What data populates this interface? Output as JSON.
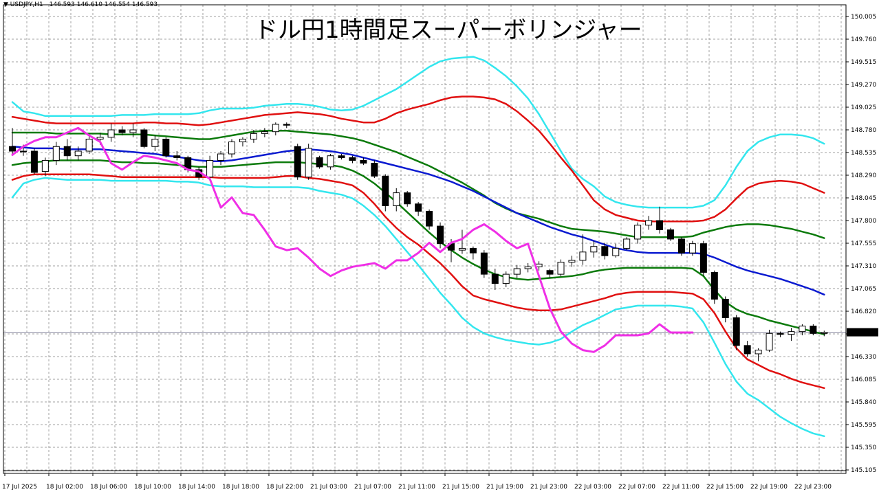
{
  "symbol_header": {
    "arrow": "▼",
    "symbol": "USDJPY,H1",
    "ohlc": "146.593 146.610 146.554 146.593"
  },
  "title": "ドル円1時間足スーパーボリンジャー",
  "current_price_label": "146.593",
  "chart_data": {
    "type": "line",
    "title": "ドル円1時間足スーパーボリンジャー",
    "symbol": "USDJPY,H1",
    "ylim": [
      145.105,
      150.005
    ],
    "grid": true,
    "y_ticks": [
      "150.005",
      "149.760",
      "149.515",
      "149.270",
      "149.025",
      "148.780",
      "148.535",
      "148.290",
      "148.045",
      "147.800",
      "147.555",
      "147.310",
      "147.065",
      "146.820",
      "146.575",
      "146.330",
      "146.085",
      "145.840",
      "145.595",
      "145.350",
      "145.105"
    ],
    "x_ticks": [
      "17 Jul 2025",
      "18 Jul 02:00",
      "18 Jul 06:00",
      "18 Jul 10:00",
      "18 Jul 14:00",
      "18 Jul 18:00",
      "18 Jul 22:00",
      "21 Jul 03:00",
      "21 Jul 07:00",
      "21 Jul 11:00",
      "21 Jul 15:00",
      "21 Jul 19:00",
      "21 Jul 23:00",
      "22 Jul 03:00",
      "22 Jul 07:00",
      "22 Jul 11:00",
      "22 Jul 15:00",
      "22 Jul 19:00",
      "22 Jul 23:00"
    ],
    "bar_count": 75,
    "last_price": 146.593,
    "colors": {
      "bull": "#ffffff",
      "bear": "#000000",
      "sma": "#0a1ad0",
      "band1": "#0b7a0b",
      "band2": "#e01010",
      "band3": "#33e6ee",
      "lagging": "#ef2fe6",
      "grid": "#a0a0a0"
    },
    "candles": [
      {
        "o": 148.6,
        "h": 148.8,
        "l": 148.5,
        "c": 148.55
      },
      {
        "o": 148.55,
        "h": 148.62,
        "l": 148.5,
        "c": 148.55
      },
      {
        "o": 148.55,
        "h": 148.58,
        "l": 148.3,
        "c": 148.32
      },
      {
        "o": 148.33,
        "h": 148.48,
        "l": 148.28,
        "c": 148.45
      },
      {
        "o": 148.45,
        "h": 148.65,
        "l": 148.4,
        "c": 148.6
      },
      {
        "o": 148.6,
        "h": 148.68,
        "l": 148.45,
        "c": 148.5
      },
      {
        "o": 148.5,
        "h": 148.6,
        "l": 148.45,
        "c": 148.55
      },
      {
        "o": 148.55,
        "h": 148.72,
        "l": 148.52,
        "c": 148.68
      },
      {
        "o": 148.68,
        "h": 148.75,
        "l": 148.62,
        "c": 148.7
      },
      {
        "o": 148.7,
        "h": 148.85,
        "l": 148.65,
        "c": 148.78
      },
      {
        "o": 148.78,
        "h": 148.82,
        "l": 148.72,
        "c": 148.75
      },
      {
        "o": 148.75,
        "h": 148.85,
        "l": 148.7,
        "c": 148.78
      },
      {
        "o": 148.78,
        "h": 148.8,
        "l": 148.58,
        "c": 148.6
      },
      {
        "o": 148.6,
        "h": 148.72,
        "l": 148.55,
        "c": 148.68
      },
      {
        "o": 148.68,
        "h": 148.7,
        "l": 148.48,
        "c": 148.5
      },
      {
        "o": 148.5,
        "h": 148.55,
        "l": 148.45,
        "c": 148.48
      },
      {
        "o": 148.48,
        "h": 148.5,
        "l": 148.32,
        "c": 148.35
      },
      {
        "o": 148.35,
        "h": 148.38,
        "l": 148.24,
        "c": 148.27
      },
      {
        "o": 148.27,
        "h": 148.5,
        "l": 148.24,
        "c": 148.45
      },
      {
        "o": 148.45,
        "h": 148.55,
        "l": 148.4,
        "c": 148.52
      },
      {
        "o": 148.52,
        "h": 148.68,
        "l": 148.48,
        "c": 148.65
      },
      {
        "o": 148.65,
        "h": 148.7,
        "l": 148.6,
        "c": 148.68
      },
      {
        "o": 148.68,
        "h": 148.78,
        "l": 148.64,
        "c": 148.74
      },
      {
        "o": 148.74,
        "h": 148.8,
        "l": 148.7,
        "c": 148.76
      },
      {
        "o": 148.76,
        "h": 148.86,
        "l": 148.72,
        "c": 148.84
      },
      {
        "o": 148.84,
        "h": 148.86,
        "l": 148.8,
        "c": 148.83
      },
      {
        "o": 148.6,
        "h": 148.63,
        "l": 148.24,
        "c": 148.27
      },
      {
        "o": 148.27,
        "h": 148.63,
        "l": 148.24,
        "c": 148.58
      },
      {
        "o": 148.48,
        "h": 148.5,
        "l": 148.36,
        "c": 148.38
      },
      {
        "o": 148.38,
        "h": 148.52,
        "l": 148.35,
        "c": 148.5
      },
      {
        "o": 148.5,
        "h": 148.52,
        "l": 148.46,
        "c": 148.48
      },
      {
        "o": 148.48,
        "h": 148.5,
        "l": 148.42,
        "c": 148.45
      },
      {
        "o": 148.45,
        "h": 148.48,
        "l": 148.4,
        "c": 148.42
      },
      {
        "o": 148.42,
        "h": 148.45,
        "l": 148.26,
        "c": 148.28
      },
      {
        "o": 148.28,
        "h": 148.3,
        "l": 147.9,
        "c": 147.96
      },
      {
        "o": 147.96,
        "h": 148.15,
        "l": 147.9,
        "c": 148.1
      },
      {
        "o": 148.1,
        "h": 148.12,
        "l": 147.95,
        "c": 147.98
      },
      {
        "o": 147.98,
        "h": 148.0,
        "l": 147.85,
        "c": 147.9
      },
      {
        "o": 147.9,
        "h": 147.92,
        "l": 147.7,
        "c": 147.74
      },
      {
        "o": 147.74,
        "h": 147.78,
        "l": 147.5,
        "c": 147.55
      },
      {
        "o": 147.55,
        "h": 147.6,
        "l": 147.35,
        "c": 147.48
      },
      {
        "o": 147.48,
        "h": 147.7,
        "l": 147.44,
        "c": 147.5
      },
      {
        "o": 147.5,
        "h": 147.52,
        "l": 147.38,
        "c": 147.45
      },
      {
        "o": 147.45,
        "h": 147.48,
        "l": 147.18,
        "c": 147.22
      },
      {
        "o": 147.22,
        "h": 147.28,
        "l": 147.05,
        "c": 147.12
      },
      {
        "o": 147.12,
        "h": 147.25,
        "l": 147.08,
        "c": 147.22
      },
      {
        "o": 147.22,
        "h": 147.32,
        "l": 147.18,
        "c": 147.28
      },
      {
        "o": 147.28,
        "h": 147.34,
        "l": 147.24,
        "c": 147.3
      },
      {
        "o": 147.3,
        "h": 147.36,
        "l": 147.26,
        "c": 147.33
      },
      {
        "o": 147.26,
        "h": 147.28,
        "l": 147.18,
        "c": 147.22
      },
      {
        "o": 147.22,
        "h": 147.38,
        "l": 147.2,
        "c": 147.35
      },
      {
        "o": 147.35,
        "h": 147.42,
        "l": 147.3,
        "c": 147.37
      },
      {
        "o": 147.37,
        "h": 147.65,
        "l": 147.32,
        "c": 147.46
      },
      {
        "o": 147.46,
        "h": 147.58,
        "l": 147.4,
        "c": 147.52
      },
      {
        "o": 147.52,
        "h": 147.56,
        "l": 147.38,
        "c": 147.42
      },
      {
        "o": 147.42,
        "h": 147.55,
        "l": 147.4,
        "c": 147.5
      },
      {
        "o": 147.5,
        "h": 147.62,
        "l": 147.48,
        "c": 147.6
      },
      {
        "o": 147.6,
        "h": 147.78,
        "l": 147.55,
        "c": 147.75
      },
      {
        "o": 147.75,
        "h": 147.85,
        "l": 147.7,
        "c": 147.8
      },
      {
        "o": 147.8,
        "h": 147.95,
        "l": 147.66,
        "c": 147.7
      },
      {
        "o": 147.7,
        "h": 147.72,
        "l": 147.58,
        "c": 147.6
      },
      {
        "o": 147.6,
        "h": 147.62,
        "l": 147.42,
        "c": 147.45
      },
      {
        "o": 147.45,
        "h": 147.58,
        "l": 147.42,
        "c": 147.55
      },
      {
        "o": 147.55,
        "h": 147.58,
        "l": 147.2,
        "c": 147.24
      },
      {
        "o": 147.24,
        "h": 147.26,
        "l": 146.9,
        "c": 146.95
      },
      {
        "o": 146.95,
        "h": 146.98,
        "l": 146.7,
        "c": 146.75
      },
      {
        "o": 146.75,
        "h": 146.78,
        "l": 146.4,
        "c": 146.45
      },
      {
        "o": 146.45,
        "h": 146.5,
        "l": 146.33,
        "c": 146.36
      },
      {
        "o": 146.36,
        "h": 146.42,
        "l": 146.28,
        "c": 146.4
      },
      {
        "o": 146.4,
        "h": 146.62,
        "l": 146.38,
        "c": 146.58
      },
      {
        "o": 146.58,
        "h": 146.6,
        "l": 146.54,
        "c": 146.57
      },
      {
        "o": 146.57,
        "h": 146.64,
        "l": 146.5,
        "c": 146.6
      },
      {
        "o": 146.6,
        "h": 146.68,
        "l": 146.56,
        "c": 146.66
      },
      {
        "o": 146.66,
        "h": 146.68,
        "l": 146.56,
        "c": 146.58
      },
      {
        "o": 146.58,
        "h": 146.61,
        "l": 146.55,
        "c": 146.593
      }
    ],
    "sma": [
      148.6,
      148.59,
      148.58,
      148.58,
      148.58,
      148.57,
      148.57,
      148.57,
      148.57,
      148.56,
      148.55,
      148.54,
      148.53,
      148.52,
      148.5,
      148.49,
      148.47,
      148.45,
      148.44,
      148.44,
      148.45,
      148.47,
      148.49,
      148.51,
      148.53,
      148.55,
      148.56,
      148.57,
      148.56,
      148.55,
      148.53,
      148.51,
      148.48,
      148.45,
      148.42,
      148.39,
      148.36,
      148.33,
      148.3,
      148.26,
      148.22,
      148.17,
      148.12,
      148.06,
      148.0,
      147.94,
      147.88,
      147.83,
      147.78,
      147.73,
      147.69,
      147.65,
      147.62,
      147.58,
      147.54,
      147.5,
      147.48,
      147.46,
      147.45,
      147.45,
      147.45,
      147.45,
      147.45,
      147.44,
      147.4,
      147.35,
      147.3,
      147.26,
      147.23,
      147.2,
      147.17,
      147.13,
      147.09,
      147.05,
      147.0
    ],
    "upper1": [
      148.75,
      148.75,
      148.75,
      148.75,
      148.74,
      148.74,
      148.74,
      148.74,
      148.74,
      148.73,
      148.73,
      148.73,
      148.73,
      148.72,
      148.71,
      148.7,
      148.69,
      148.68,
      148.68,
      148.7,
      148.72,
      148.74,
      148.76,
      148.77,
      148.77,
      148.77,
      148.76,
      148.75,
      148.74,
      148.73,
      148.71,
      148.69,
      148.66,
      148.62,
      148.58,
      148.54,
      148.49,
      148.44,
      148.39,
      148.33,
      148.27,
      148.21,
      148.14,
      148.07,
      147.99,
      147.93,
      147.88,
      147.85,
      147.82,
      147.78,
      147.74,
      147.71,
      147.7,
      147.69,
      147.68,
      147.66,
      147.64,
      147.62,
      147.62,
      147.62,
      147.62,
      147.62,
      147.63,
      147.67,
      147.7,
      147.73,
      147.75,
      147.76,
      147.76,
      147.75,
      147.73,
      147.71,
      147.68,
      147.65,
      147.61
    ],
    "lower1": [
      148.4,
      148.42,
      148.43,
      148.44,
      148.45,
      148.45,
      148.45,
      148.45,
      148.45,
      148.44,
      148.43,
      148.43,
      148.42,
      148.42,
      148.41,
      148.4,
      148.39,
      148.38,
      148.38,
      148.38,
      148.39,
      148.4,
      148.41,
      148.42,
      148.43,
      148.43,
      148.43,
      148.42,
      148.41,
      148.4,
      148.38,
      148.34,
      148.28,
      148.2,
      148.1,
      148.0,
      147.89,
      147.78,
      147.67,
      147.57,
      147.48,
      147.4,
      147.33,
      147.27,
      147.22,
      147.19,
      147.17,
      147.16,
      147.17,
      147.18,
      147.19,
      147.2,
      147.22,
      147.25,
      147.27,
      147.28,
      147.29,
      147.29,
      147.29,
      147.29,
      147.29,
      147.29,
      147.28,
      147.2,
      147.05,
      146.92,
      146.84,
      146.79,
      146.76,
      146.72,
      146.69,
      146.66,
      146.63,
      146.6,
      146.57
    ],
    "upper2": [
      148.92,
      148.9,
      148.88,
      148.86,
      148.85,
      148.85,
      148.85,
      148.85,
      148.85,
      148.85,
      148.85,
      148.85,
      148.86,
      148.86,
      148.85,
      148.85,
      148.84,
      148.83,
      148.84,
      148.86,
      148.88,
      148.9,
      148.92,
      148.94,
      148.95,
      148.96,
      148.97,
      148.96,
      148.95,
      148.93,
      148.9,
      148.88,
      148.86,
      148.86,
      148.9,
      148.96,
      149.0,
      149.03,
      149.06,
      149.1,
      149.13,
      149.14,
      149.14,
      149.13,
      149.11,
      149.06,
      148.98,
      148.88,
      148.77,
      148.63,
      148.48,
      148.34,
      148.18,
      148.02,
      147.92,
      147.86,
      147.83,
      147.8,
      147.79,
      147.79,
      147.79,
      147.79,
      147.79,
      147.8,
      147.84,
      147.92,
      148.04,
      148.15,
      148.2,
      148.22,
      148.23,
      148.22,
      148.2,
      148.15,
      148.1
    ],
    "lower2": [
      148.24,
      148.28,
      148.3,
      148.3,
      148.3,
      148.3,
      148.3,
      148.3,
      148.29,
      148.28,
      148.27,
      148.27,
      148.27,
      148.27,
      148.27,
      148.27,
      148.27,
      148.27,
      148.27,
      148.26,
      148.26,
      148.26,
      148.26,
      148.26,
      148.27,
      148.28,
      148.28,
      148.26,
      148.25,
      148.23,
      148.21,
      148.18,
      148.1,
      147.98,
      147.84,
      147.72,
      147.62,
      147.54,
      147.44,
      147.34,
      147.22,
      147.09,
      146.99,
      146.95,
      146.92,
      146.89,
      146.86,
      146.84,
      146.83,
      146.83,
      146.84,
      146.87,
      146.9,
      146.93,
      146.96,
      147.0,
      147.02,
      147.03,
      147.03,
      147.03,
      147.03,
      147.02,
      147.01,
      146.95,
      146.8,
      146.6,
      146.42,
      146.3,
      146.24,
      146.18,
      146.14,
      146.09,
      146.05,
      146.02,
      145.99
    ],
    "upper3": [
      149.08,
      148.98,
      148.96,
      148.93,
      148.93,
      148.93,
      148.93,
      148.93,
      148.93,
      148.93,
      148.94,
      148.94,
      148.94,
      148.95,
      148.95,
      148.95,
      148.95,
      148.96,
      148.99,
      149.01,
      149.01,
      149.01,
      149.02,
      149.04,
      149.05,
      149.06,
      149.06,
      149.05,
      149.03,
      149.0,
      148.99,
      149.0,
      149.04,
      149.1,
      149.16,
      149.22,
      149.3,
      149.38,
      149.46,
      149.52,
      149.55,
      149.56,
      149.57,
      149.53,
      149.45,
      149.36,
      149.25,
      149.12,
      148.95,
      148.75,
      148.55,
      148.36,
      148.25,
      148.17,
      148.06,
      148.0,
      147.97,
      147.95,
      147.94,
      147.94,
      147.94,
      147.94,
      147.94,
      147.96,
      148.02,
      148.18,
      148.38,
      148.55,
      148.65,
      148.7,
      148.73,
      148.73,
      148.72,
      148.69,
      148.63
    ],
    "lower3": [
      148.05,
      148.2,
      148.24,
      148.26,
      148.25,
      148.24,
      148.24,
      148.24,
      148.24,
      148.23,
      148.23,
      148.23,
      148.23,
      148.23,
      148.23,
      148.22,
      148.22,
      148.21,
      148.18,
      148.17,
      148.17,
      148.17,
      148.16,
      148.16,
      148.16,
      148.16,
      148.16,
      148.15,
      148.12,
      148.1,
      148.08,
      148.04,
      147.96,
      147.86,
      147.74,
      147.6,
      147.46,
      147.32,
      147.17,
      147.02,
      146.89,
      146.75,
      146.65,
      146.58,
      146.54,
      146.51,
      146.49,
      146.47,
      146.46,
      146.48,
      146.52,
      146.6,
      146.67,
      146.72,
      146.78,
      146.84,
      146.86,
      146.88,
      146.88,
      146.88,
      146.88,
      146.87,
      146.85,
      146.7,
      146.48,
      146.25,
      146.06,
      145.93,
      145.86,
      145.77,
      145.68,
      145.61,
      145.55,
      145.5,
      145.47
    ],
    "lagging": [
      148.51,
      148.6,
      148.66,
      148.7,
      148.7,
      148.75,
      148.8,
      148.72,
      148.65,
      148.42,
      148.35,
      148.43,
      148.5,
      148.48,
      148.45,
      148.42,
      148.35,
      148.33,
      148.25,
      147.94,
      148.05,
      147.88,
      147.86,
      147.7,
      147.52,
      147.48,
      147.5,
      147.4,
      147.28,
      147.2,
      147.26,
      147.3,
      147.32,
      147.34,
      147.28,
      147.37,
      147.37,
      147.45,
      147.56,
      147.46,
      147.56,
      147.6,
      147.7,
      147.76,
      147.68,
      147.58,
      147.5,
      147.55,
      147.2,
      146.85,
      146.6,
      146.47,
      146.4,
      146.38,
      146.45,
      146.56,
      146.56,
      146.56,
      146.58,
      146.68,
      146.59,
      146.59,
      146.59
    ]
  }
}
